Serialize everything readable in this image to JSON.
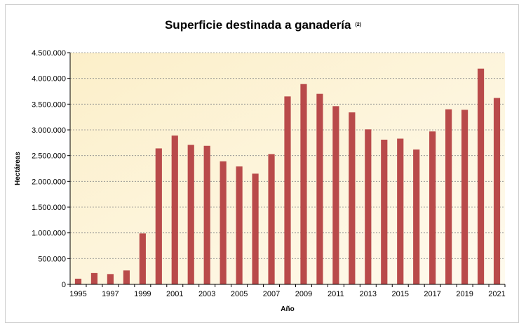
{
  "chart_data": {
    "type": "bar",
    "title": "Superficie destinada a ganadería",
    "title_note": "(2)",
    "xlabel": "Año",
    "ylabel": "Hectáreas",
    "categories": [
      "1995",
      "1996",
      "1997",
      "1998",
      "1999",
      "2000",
      "2001",
      "2002",
      "2003",
      "2004",
      "2005",
      "2006",
      "2007",
      "2008",
      "2009",
      "2010",
      "2011",
      "2012",
      "2013",
      "2014",
      "2015",
      "2016",
      "2017",
      "2018",
      "2019",
      "2020",
      "2021"
    ],
    "x_tick_labels": [
      "1995",
      "1997",
      "1999",
      "2001",
      "2003",
      "2005",
      "2007",
      "2009",
      "2011",
      "2013",
      "2015",
      "2017",
      "2019",
      "2021"
    ],
    "values": [
      110000,
      220000,
      200000,
      270000,
      990000,
      2640000,
      2890000,
      2710000,
      2690000,
      2390000,
      2290000,
      2150000,
      2530000,
      3650000,
      3890000,
      3700000,
      3460000,
      3340000,
      3010000,
      2810000,
      2830000,
      2620000,
      2970000,
      3400000,
      3390000,
      4190000,
      3620000
    ],
    "ylim": [
      0,
      4500000
    ],
    "y_ticks": [
      0,
      500000,
      1000000,
      1500000,
      2000000,
      2500000,
      3000000,
      3500000,
      4000000,
      4500000
    ],
    "y_tick_labels": [
      "0",
      "500.000",
      "1.000.000",
      "1.500.000",
      "2.000.000",
      "2.500.000",
      "3.000.000",
      "3.500.000",
      "4.000.000",
      "4.500.000"
    ],
    "grid": true,
    "legend": false,
    "colors": {
      "bar": "#b94a4a",
      "plot_background": "#fdf3d6",
      "grid": "#8a8a8a"
    }
  }
}
